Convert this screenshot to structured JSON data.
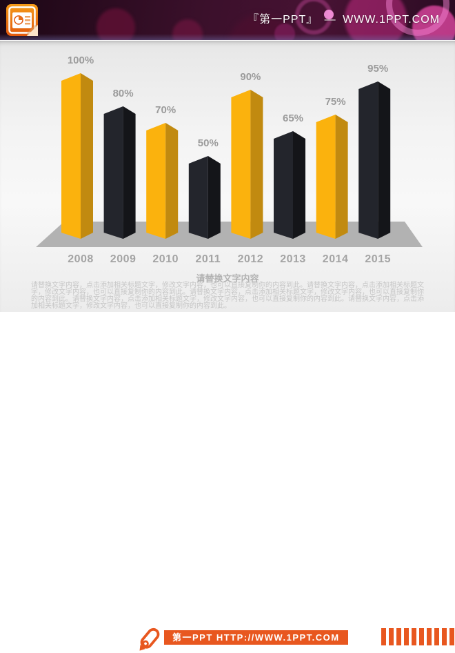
{
  "header": {
    "title": "『第一PPT』 —  WWW.1PPT.COM",
    "logo": "powerpoint-document-icon",
    "bg_color": "#3b102b",
    "bokeh_color": "#e54bb0"
  },
  "chart_data": {
    "type": "bar",
    "style": "3d-prism-columns",
    "categories": [
      "2008",
      "2009",
      "2010",
      "2011",
      "2012",
      "2013",
      "2014",
      "2015"
    ],
    "values": [
      100,
      80,
      70,
      50,
      90,
      65,
      75,
      95
    ],
    "value_labels": [
      "100%",
      "80%",
      "70%",
      "50%",
      "90%",
      "65%",
      "75%",
      "95%"
    ],
    "title": "",
    "xlabel": "",
    "ylabel": "",
    "ylim": [
      0,
      100
    ],
    "grid": false,
    "legend": false,
    "alternating_palette": [
      "yellow",
      "black"
    ],
    "colors": {
      "yellow_face": "#fbb20d",
      "yellow_side": "#c18a10",
      "black_face": "#23252c",
      "black_side": "#141519",
      "floor": "#b2b2b2",
      "value_label": "#9b9b9b",
      "category_label": "#a4a4a4"
    }
  },
  "body": {
    "heading": "请替换文字内容",
    "paragraph": "请替换文字内容，点击添加相关标题文字，修改文字内容，也可以直接复制你的内容到此。请替换文字内容，点击添加相关标题文字，修改文字内容，也可以直接复制你的内容到此。请替换文字内容，点击添加相关标题文字，修改文字内容，也可以直接复制你的内容到此。请替换文字内容，点击添加相关标题文字，修改文字内容，也可以直接复制你的内容到此。请替换文字内容，点击添加相关标题文字，修改文字内容，也可以直接复制你的内容到此。"
  },
  "footer": {
    "brand_text": "第一PPT HTTP://WWW.1PPT.COM",
    "accent_color": "#e8571f"
  }
}
